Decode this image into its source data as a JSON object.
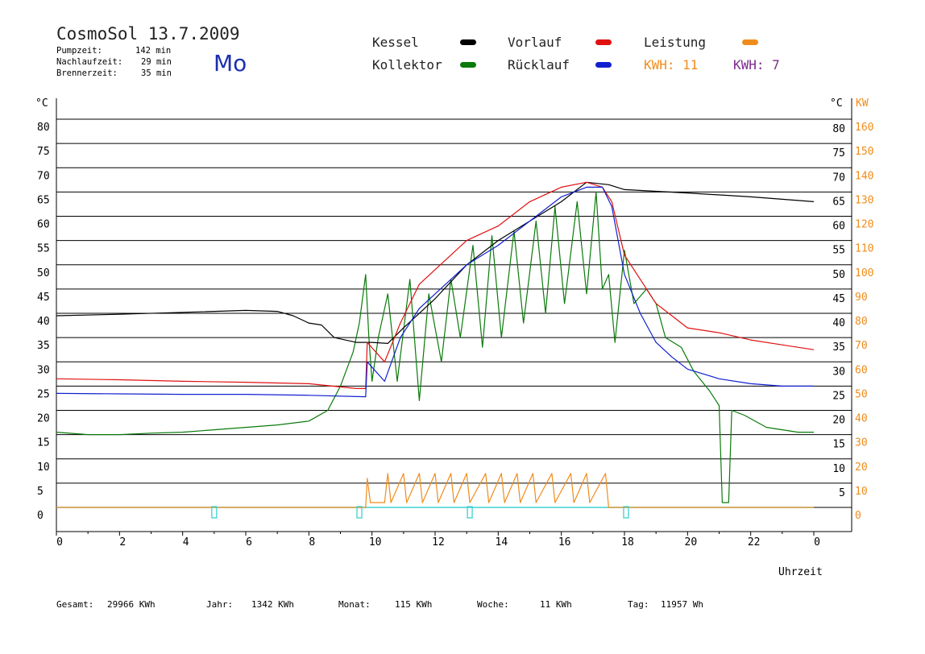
{
  "header": {
    "title": "CosmoSol 13.7.2009",
    "day": "Mo",
    "stats": [
      {
        "label": "Pumpzeit:",
        "value": "142 min"
      },
      {
        "label": "Nachlaufzeit:",
        "value": "29 min"
      },
      {
        "label": "Brennerzeit:",
        "value": "35 min"
      }
    ]
  },
  "legend": {
    "kessel": "Kessel",
    "kollektor": "Kollektor",
    "vorlauf": "Vorlauf",
    "ruecklauf": "Rücklauf",
    "leistung": "Leistung",
    "kwh1": "KWH: 11",
    "kwh2": "KWH: 7"
  },
  "colors": {
    "kessel": "#000000",
    "kollektor": "#0a7a0a",
    "vorlauf": "#e01010",
    "ruecklauf": "#1020d0",
    "leistung": "#f08c1c",
    "kwh2": "#7b2a8c",
    "baseline": "#40d0d0"
  },
  "footer": [
    {
      "label": "Gesamt:",
      "value": "29966 KWh"
    },
    {
      "label": "Jahr:",
      "value": "1342 KWh"
    },
    {
      "label": "Monat:",
      "value": "115 KWh"
    },
    {
      "label": "Woche:",
      "value": "11 KWh"
    },
    {
      "label": "Tag:",
      "value": "11957 Wh"
    }
  ],
  "chart_data": {
    "type": "line",
    "xlabel": "Uhrzeit",
    "ylabel_left": "°C",
    "ylabel_right_temp": "°C",
    "ylabel_right_power": "KW",
    "xlim": [
      0,
      24
    ],
    "ylim": [
      0,
      80
    ],
    "y2lim": [
      0,
      160
    ],
    "xticks": [
      "0",
      "2",
      "4",
      "6",
      "8",
      "10",
      "12",
      "14",
      "16",
      "18",
      "20",
      "22",
      "0"
    ],
    "yticks_left": [
      "0",
      "5",
      "10",
      "15",
      "20",
      "25",
      "30",
      "35",
      "40",
      "45",
      "50",
      "55",
      "60",
      "65",
      "70",
      "75",
      "80"
    ],
    "yticks_right_temp": [
      "5",
      "10",
      "15",
      "20",
      "25",
      "30",
      "35",
      "40",
      "45",
      "50",
      "55",
      "60",
      "65",
      "70",
      "75",
      "80"
    ],
    "yticks_right_power": [
      "0",
      "10",
      "20",
      "30",
      "40",
      "50",
      "60",
      "70",
      "80",
      "90",
      "100",
      "110",
      "120",
      "130",
      "140",
      "150",
      "160"
    ],
    "grid": true,
    "series": [
      {
        "name": "Kessel",
        "key": "kessel",
        "points": [
          [
            0,
            39.5
          ],
          [
            2,
            39.8
          ],
          [
            4,
            40.2
          ],
          [
            6,
            40.6
          ],
          [
            7,
            40.4
          ],
          [
            7.5,
            39.5
          ],
          [
            8,
            38.0
          ],
          [
            8.4,
            37.6
          ],
          [
            8.8,
            35.0
          ],
          [
            9.5,
            34.0
          ],
          [
            10,
            34.0
          ],
          [
            10.5,
            33.8
          ],
          [
            11,
            37
          ],
          [
            12,
            43
          ],
          [
            13,
            50
          ],
          [
            14,
            55
          ],
          [
            15,
            59
          ],
          [
            16,
            63
          ],
          [
            16.8,
            67
          ],
          [
            17.5,
            66.5
          ],
          [
            18,
            65.5
          ],
          [
            20,
            64.8
          ],
          [
            22,
            64.0
          ],
          [
            24,
            63.0
          ]
        ]
      },
      {
        "name": "Vorlauf",
        "key": "vorlauf",
        "points": [
          [
            0,
            26.5
          ],
          [
            2,
            26.3
          ],
          [
            4,
            26.0
          ],
          [
            6,
            25.8
          ],
          [
            8,
            25.5
          ],
          [
            9.5,
            24.5
          ],
          [
            9.8,
            24.5
          ],
          [
            9.85,
            34
          ],
          [
            10.4,
            30
          ],
          [
            10.9,
            38
          ],
          [
            11.5,
            46
          ],
          [
            12,
            49
          ],
          [
            13,
            55
          ],
          [
            14,
            58
          ],
          [
            15,
            63
          ],
          [
            16,
            66
          ],
          [
            16.8,
            67
          ],
          [
            17.3,
            66
          ],
          [
            17.6,
            63
          ],
          [
            18,
            52
          ],
          [
            18.5,
            47
          ],
          [
            19,
            42
          ],
          [
            19.5,
            39.5
          ],
          [
            20,
            37
          ],
          [
            21,
            36
          ],
          [
            22,
            34.5
          ],
          [
            23,
            33.5
          ],
          [
            24,
            32.5
          ]
        ]
      },
      {
        "name": "Rücklauf",
        "key": "ruecklauf",
        "points": [
          [
            0,
            23.5
          ],
          [
            2,
            23.4
          ],
          [
            4,
            23.3
          ],
          [
            6,
            23.3
          ],
          [
            8,
            23.1
          ],
          [
            9.8,
            22.8
          ],
          [
            9.85,
            30
          ],
          [
            10.4,
            26
          ],
          [
            10.9,
            35
          ],
          [
            11.5,
            41
          ],
          [
            12,
            44
          ],
          [
            13,
            50
          ],
          [
            14,
            54
          ],
          [
            15,
            59
          ],
          [
            16,
            64
          ],
          [
            16.8,
            66
          ],
          [
            17.3,
            66
          ],
          [
            17.6,
            62
          ],
          [
            18,
            48
          ],
          [
            18.5,
            40
          ],
          [
            19,
            34
          ],
          [
            19.5,
            31
          ],
          [
            20,
            28.5
          ],
          [
            21,
            26.5
          ],
          [
            22,
            25.5
          ],
          [
            23,
            25.0
          ],
          [
            24,
            25.0
          ]
        ]
      },
      {
        "name": "Kollektor",
        "key": "kollektor",
        "points": [
          [
            0,
            15.5
          ],
          [
            1,
            15.0
          ],
          [
            2,
            15.0
          ],
          [
            3,
            15.3
          ],
          [
            4,
            15.5
          ],
          [
            5,
            16.0
          ],
          [
            6,
            16.5
          ],
          [
            7,
            17.0
          ],
          [
            8,
            17.8
          ],
          [
            8.6,
            20
          ],
          [
            9,
            25
          ],
          [
            9.4,
            32
          ],
          [
            9.6,
            38
          ],
          [
            9.8,
            48
          ],
          [
            9.9,
            35
          ],
          [
            10,
            26
          ],
          [
            10.2,
            35
          ],
          [
            10.5,
            44
          ],
          [
            10.8,
            26
          ],
          [
            11.2,
            47
          ],
          [
            11.5,
            22
          ],
          [
            11.8,
            44
          ],
          [
            12.2,
            30
          ],
          [
            12.5,
            47
          ],
          [
            12.8,
            35
          ],
          [
            13.2,
            54
          ],
          [
            13.5,
            33
          ],
          [
            13.8,
            56
          ],
          [
            14.1,
            35
          ],
          [
            14.5,
            57
          ],
          [
            14.8,
            38
          ],
          [
            15.2,
            59
          ],
          [
            15.5,
            40
          ],
          [
            15.8,
            62
          ],
          [
            16.1,
            42
          ],
          [
            16.5,
            63
          ],
          [
            16.8,
            44
          ],
          [
            17.1,
            65
          ],
          [
            17.3,
            45
          ],
          [
            17.5,
            48
          ],
          [
            17.7,
            34
          ],
          [
            18,
            53
          ],
          [
            18.3,
            42
          ],
          [
            18.7,
            45
          ],
          [
            19,
            42
          ],
          [
            19.3,
            35
          ],
          [
            19.8,
            33
          ],
          [
            20.2,
            28
          ],
          [
            20.7,
            24
          ],
          [
            21.0,
            21
          ],
          [
            21.1,
            1
          ],
          [
            21.3,
            1
          ],
          [
            21.4,
            20
          ],
          [
            21.8,
            19
          ],
          [
            22.5,
            16.5
          ],
          [
            23.0,
            16.0
          ],
          [
            23.5,
            15.5
          ],
          [
            24,
            15.5
          ]
        ]
      },
      {
        "name": "Leistung",
        "key": "leistung",
        "unit": "KW",
        "points": [
          [
            0,
            0
          ],
          [
            9.8,
            0
          ],
          [
            9.85,
            12
          ],
          [
            9.95,
            2
          ],
          [
            10.4,
            2
          ],
          [
            10.5,
            14
          ],
          [
            10.6,
            2
          ],
          [
            11,
            14
          ],
          [
            11.1,
            2
          ],
          [
            11.5,
            14
          ],
          [
            11.6,
            2
          ],
          [
            12,
            14
          ],
          [
            12.1,
            2
          ],
          [
            12.5,
            14
          ],
          [
            12.6,
            2
          ],
          [
            13,
            14
          ],
          [
            13.1,
            2
          ],
          [
            13.6,
            14
          ],
          [
            13.7,
            2
          ],
          [
            14.1,
            14
          ],
          [
            14.2,
            2
          ],
          [
            14.6,
            14
          ],
          [
            14.7,
            2
          ],
          [
            15.1,
            14
          ],
          [
            15.2,
            2
          ],
          [
            15.7,
            14
          ],
          [
            15.8,
            2
          ],
          [
            16.3,
            14
          ],
          [
            16.4,
            2
          ],
          [
            16.8,
            14
          ],
          [
            16.9,
            2
          ],
          [
            17.4,
            14
          ],
          [
            17.5,
            0
          ],
          [
            24,
            0
          ]
        ]
      },
      {
        "name": "Baseline",
        "key": "baseline",
        "points": [
          [
            0,
            0
          ],
          [
            24,
            0
          ]
        ]
      }
    ]
  }
}
